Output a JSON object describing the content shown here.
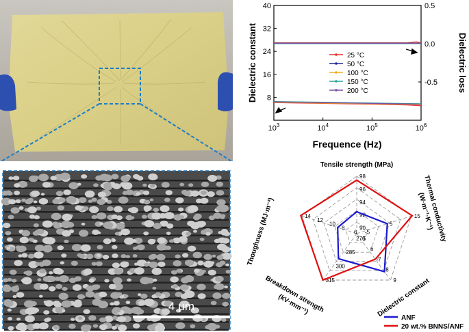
{
  "photo": {
    "description_visible": ""
  },
  "sem": {
    "scale_bar_label": "4 μm"
  },
  "colors": {
    "t25": "#e8322c",
    "t50": "#1f2a9c",
    "t100": "#f0b020",
    "t150": "#2ba59c",
    "t200": "#7a4fa0",
    "anf": "#1a1ad0",
    "bnns": "#e01010"
  },
  "chart_data": [
    {
      "type": "line",
      "xlabel": "Frequence (Hz)",
      "ylabel": "Dielectric constant",
      "y2label": "Dielectric loss",
      "xscale": "log",
      "xlim": [
        1000,
        1000000
      ],
      "xticks": [
        "10^3",
        "10^4",
        "10^5",
        "10^6"
      ],
      "ylim": [
        0,
        40
      ],
      "yticks": [
        8,
        16,
        24,
        32,
        40
      ],
      "y2lim": [
        -1.0,
        0.5
      ],
      "y2ticks": [
        "0.5",
        "0.0",
        "-0.5"
      ],
      "legend_position": "center",
      "series": [
        {
          "name": "25 °C",
          "axis": "left",
          "x": [
            1000,
            10000,
            100000,
            500000,
            800000,
            1000000
          ],
          "values": [
            27.0,
            27.0,
            27.0,
            27.0,
            27.3,
            27.0
          ]
        },
        {
          "name": "50 °C",
          "axis": "left",
          "x": [
            1000,
            10000,
            100000,
            1000000
          ],
          "values": [
            26.9,
            26.9,
            26.9,
            26.9
          ]
        },
        {
          "name": "100 °C",
          "axis": "left",
          "x": [
            1000,
            10000,
            100000,
            1000000
          ],
          "values": [
            26.8,
            26.8,
            26.8,
            26.8
          ]
        },
        {
          "name": "150 °C",
          "axis": "left",
          "x": [
            1000,
            10000,
            100000,
            1000000
          ],
          "values": [
            26.7,
            26.7,
            26.7,
            26.7
          ]
        },
        {
          "name": "200 °C",
          "axis": "left",
          "x": [
            1000,
            10000,
            100000,
            1000000
          ],
          "values": [
            26.8,
            26.8,
            26.8,
            26.8
          ]
        },
        {
          "name": "25 °C",
          "axis": "right",
          "x": [
            1000,
            10000,
            100000,
            500000,
            1000000
          ],
          "values": [
            -0.77,
            -0.78,
            -0.79,
            -0.8,
            -0.81
          ]
        },
        {
          "name": "50 °C",
          "axis": "right",
          "x": [
            1000,
            10000,
            100000,
            1000000
          ],
          "values": [
            -0.76,
            -0.77,
            -0.78,
            -0.79
          ]
        },
        {
          "name": "100 °C",
          "axis": "right",
          "x": [
            1000,
            10000,
            100000,
            1000000
          ],
          "values": [
            -0.765,
            -0.775,
            -0.785,
            -0.795
          ]
        },
        {
          "name": "150 °C",
          "axis": "right",
          "x": [
            1000,
            10000,
            100000,
            1000000
          ],
          "values": [
            -0.755,
            -0.765,
            -0.775,
            -0.785
          ]
        },
        {
          "name": "200 °C",
          "axis": "right",
          "x": [
            1000,
            10000,
            100000,
            1000000
          ],
          "values": [
            -0.76,
            -0.77,
            -0.78,
            -0.79
          ]
        }
      ]
    },
    {
      "type": "radar",
      "legend_position": "bottom-right",
      "axes": [
        {
          "label": "Tensile strength (MPa)",
          "ticks": [
            "90",
            "92",
            "94",
            "96",
            "98"
          ]
        },
        {
          "label_lines": [
            "Thermal conductivity",
            "(W·m⁻¹·K⁻¹)"
          ],
          "ticks": [
            "-5",
            "5",
            "15"
          ]
        },
        {
          "label": "Dielectric constant",
          "ticks": [
            "5",
            "6",
            "7",
            "8",
            "9"
          ]
        },
        {
          "label_lines": [
            "Breakdown strength",
            "(kV·mm⁻¹)"
          ],
          "ticks": [
            "270",
            "285",
            "300",
            "315"
          ]
        },
        {
          "label": "Thoughness (MJ·m⁻³)",
          "ticks": [
            "6",
            "8",
            "10",
            "12",
            "14"
          ]
        }
      ],
      "series": [
        {
          "name": "ANF",
          "values": [
            92.5,
            5.2,
            8.2,
            292,
            8.2
          ]
        },
        {
          "name": "20 wt.% BNNS/ANF",
          "values": [
            97.4,
            15.3,
            7.0,
            315,
            14.2
          ]
        }
      ]
    }
  ]
}
